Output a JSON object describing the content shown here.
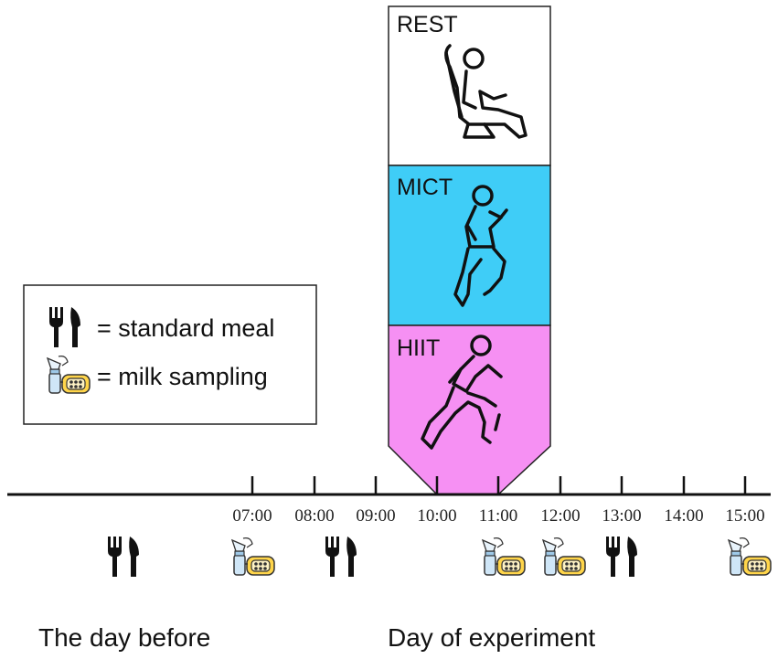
{
  "panels": [
    {
      "label": "REST",
      "color": "#ffffff",
      "icon": "seated-person-icon"
    },
    {
      "label": "MICT",
      "color": "#3fcdf7",
      "icon": "running-person-icon"
    },
    {
      "label": "HIIT",
      "color": "#f690f3",
      "icon": "sprinting-person-icon"
    }
  ],
  "legend": {
    "meal_text": "= standard meal",
    "milk_text": "= milk sampling",
    "meal_icon": "fork-knife-icon",
    "milk_icon": "breast-pump-icon"
  },
  "timeline": {
    "ticks": [
      "07:00",
      "08:00",
      "09:00",
      "10:00",
      "11:00",
      "12:00",
      "13:00",
      "14:00",
      "15:00"
    ],
    "meal_events_day_of": [
      "08:00",
      "13:00"
    ],
    "milk_events": [
      "07:00",
      "11:00",
      "12:00",
      "15:00"
    ]
  },
  "labels": {
    "day_before": "The day before",
    "day_of": "Day of experiment"
  },
  "colors": {
    "mict": "#3fcdf7",
    "hiit": "#f690f3",
    "pump_yellow": "#ffd54a",
    "pump_blue": "#cfe6f7"
  }
}
